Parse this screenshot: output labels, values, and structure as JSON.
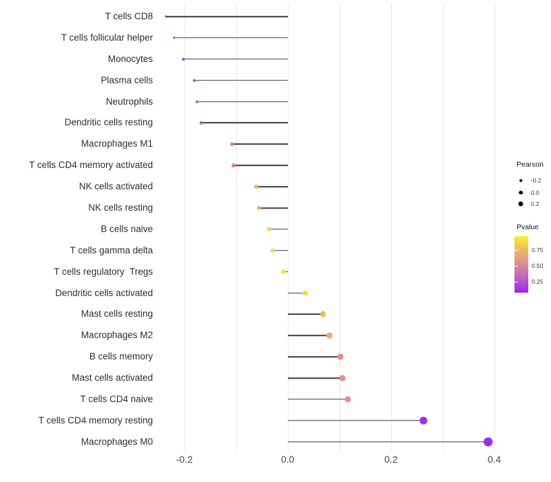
{
  "chart_data": {
    "type": "lollipop",
    "title": "",
    "xlabel": "",
    "ylabel": "",
    "orientation": "horizontal",
    "stem_anchor": 0,
    "xlim": [
      -0.253,
      0.427
    ],
    "grid": "vertical light gray lines every 0.1, white background, no axis lines",
    "x_axis": {
      "ticks": [
        "-0.2",
        "0.0",
        "0.2",
        "0.4"
      ],
      "tick_values": [
        -0.2,
        0.0,
        0.2,
        0.4
      ],
      "grid_values": [
        -0.2,
        -0.1,
        0.0,
        0.1,
        0.2,
        0.3,
        0.4
      ]
    },
    "encoding": {
      "x": "Pearson correlation",
      "size": "Pearson",
      "color": "Pvalue (yellow = high, purple = low)"
    },
    "points": [
      {
        "label": "T cells CD8",
        "pearson": -0.236,
        "pvalue": 0.21,
        "color": "#9B34C6"
      },
      {
        "label": "T cells follicular helper",
        "pearson": -0.22,
        "pvalue": 0.23,
        "color": "#A339C7"
      },
      {
        "label": "Monocytes",
        "pearson": -0.202,
        "pvalue": 0.26,
        "color": "#AC41C7"
      },
      {
        "label": "Plasma cells",
        "pearson": -0.181,
        "pvalue": 0.3,
        "color": "#B650C8"
      },
      {
        "label": "Neutrophils",
        "pearson": -0.176,
        "pvalue": 0.31,
        "color": "#B954C8"
      },
      {
        "label": "Dendritic cells resting",
        "pearson": -0.168,
        "pvalue": 0.33,
        "color": "#BD5AC8"
      },
      {
        "label": "Macrophages M1",
        "pearson": -0.108,
        "pvalue": 0.52,
        "color": "#E08B86"
      },
      {
        "label": "T cells CD4 memory activated",
        "pearson": -0.105,
        "pvalue": 0.52,
        "color": "#E08B86"
      },
      {
        "label": "NK cells activated",
        "pearson": -0.061,
        "pvalue": 0.7,
        "color": "#EAB968"
      },
      {
        "label": "NK cells resting",
        "pearson": -0.056,
        "pvalue": 0.69,
        "color": "#EAB76B"
      },
      {
        "label": "B cells naive",
        "pearson": -0.036,
        "pvalue": 0.78,
        "color": "#F0D451"
      },
      {
        "label": "T cells gamma delta",
        "pearson": -0.029,
        "pvalue": 0.83,
        "color": "#F4E139"
      },
      {
        "label": "T cells regulatory  Tregs",
        "pearson": -0.009,
        "pvalue": 0.92,
        "color": "#F9EA16"
      },
      {
        "label": "Dendritic cells activated",
        "pearson": 0.034,
        "pvalue": 0.81,
        "color": "#F3DE45"
      },
      {
        "label": "Mast cells resting",
        "pearson": 0.068,
        "pvalue": 0.7,
        "color": "#EEBC59"
      },
      {
        "label": "Macrophages M2",
        "pearson": 0.081,
        "pvalue": 0.64,
        "color": "#ECAE70"
      },
      {
        "label": "B cells memory",
        "pearson": 0.102,
        "pvalue": 0.52,
        "color": "#E2908A"
      },
      {
        "label": "Mast cells activated",
        "pearson": 0.106,
        "pvalue": 0.51,
        "color": "#E19090"
      },
      {
        "label": "T cells CD4 naive",
        "pearson": 0.117,
        "pvalue": 0.47,
        "color": "#DE8F9D"
      },
      {
        "label": "T cells CD4 memory resting",
        "pearson": 0.263,
        "pvalue": 0.1,
        "color": "#9D2BEE"
      },
      {
        "label": "Macrophages M0",
        "pearson": 0.388,
        "pvalue": 0.08,
        "color": "#9C28EE"
      }
    ],
    "legend": {
      "size": {
        "title": "Pearson",
        "ticks": [
          "-0.2",
          "0.0",
          "0.2"
        ],
        "dot_color": "#000000"
      },
      "color": {
        "title": "Pvalue",
        "ticks": [
          "0.75",
          "0.50",
          "0.25"
        ],
        "gradient_top": "#FBF02B",
        "gradient_middle": "#E29A85",
        "gradient_bottom": "#A21FF0"
      }
    },
    "colors": {
      "gridline": "#e9e9e9",
      "stem": "#3b3b3b",
      "axis_text": "#4a4a4a",
      "label_text": "#2e2e2e",
      "background": "#ffffff"
    }
  }
}
